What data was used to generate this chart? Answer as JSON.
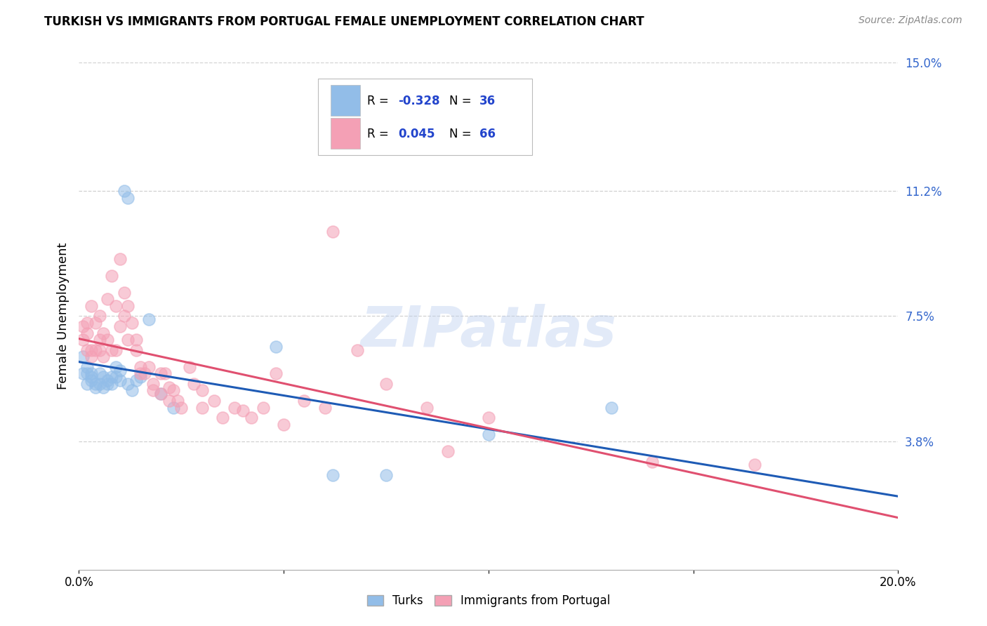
{
  "title": "TURKISH VS IMMIGRANTS FROM PORTUGAL FEMALE UNEMPLOYMENT CORRELATION CHART",
  "source": "Source: ZipAtlas.com",
  "ylabel": "Female Unemployment",
  "x_min": 0.0,
  "x_max": 0.2,
  "y_min": 0.0,
  "y_max": 0.15,
  "x_ticks": [
    0.0,
    0.05,
    0.1,
    0.15,
    0.2
  ],
  "x_tick_labels": [
    "0.0%",
    "",
    "",
    "",
    "20.0%"
  ],
  "y_tick_labels_right": [
    "15.0%",
    "11.2%",
    "7.5%",
    "3.8%"
  ],
  "y_tick_values_right": [
    0.15,
    0.112,
    0.075,
    0.038
  ],
  "legend_turks_R": "-0.328",
  "legend_turks_N": "36",
  "legend_portugal_R": "0.045",
  "legend_portugal_N": "66",
  "turks_color": "#92BDE8",
  "portugal_color": "#F4A0B5",
  "turks_line_color": "#1E5BB5",
  "portugal_line_color": "#E05070",
  "turks_scatter": [
    [
      0.001,
      0.063
    ],
    [
      0.001,
      0.058
    ],
    [
      0.002,
      0.06
    ],
    [
      0.002,
      0.058
    ],
    [
      0.002,
      0.055
    ],
    [
      0.003,
      0.058
    ],
    [
      0.003,
      0.056
    ],
    [
      0.003,
      0.057
    ],
    [
      0.004,
      0.055
    ],
    [
      0.004,
      0.054
    ],
    [
      0.005,
      0.058
    ],
    [
      0.005,
      0.055
    ],
    [
      0.006,
      0.057
    ],
    [
      0.006,
      0.054
    ],
    [
      0.007,
      0.056
    ],
    [
      0.007,
      0.055
    ],
    [
      0.008,
      0.057
    ],
    [
      0.008,
      0.055
    ],
    [
      0.009,
      0.06
    ],
    [
      0.009,
      0.057
    ],
    [
      0.01,
      0.059
    ],
    [
      0.01,
      0.056
    ],
    [
      0.011,
      0.112
    ],
    [
      0.012,
      0.11
    ],
    [
      0.012,
      0.055
    ],
    [
      0.013,
      0.053
    ],
    [
      0.014,
      0.056
    ],
    [
      0.015,
      0.057
    ],
    [
      0.017,
      0.074
    ],
    [
      0.02,
      0.052
    ],
    [
      0.023,
      0.048
    ],
    [
      0.048,
      0.066
    ],
    [
      0.062,
      0.028
    ],
    [
      0.075,
      0.028
    ],
    [
      0.1,
      0.04
    ],
    [
      0.13,
      0.048
    ]
  ],
  "portugal_scatter": [
    [
      0.001,
      0.072
    ],
    [
      0.001,
      0.068
    ],
    [
      0.002,
      0.07
    ],
    [
      0.002,
      0.073
    ],
    [
      0.002,
      0.065
    ],
    [
      0.003,
      0.078
    ],
    [
      0.003,
      0.065
    ],
    [
      0.003,
      0.063
    ],
    [
      0.004,
      0.073
    ],
    [
      0.004,
      0.065
    ],
    [
      0.005,
      0.068
    ],
    [
      0.005,
      0.075
    ],
    [
      0.005,
      0.065
    ],
    [
      0.006,
      0.07
    ],
    [
      0.006,
      0.063
    ],
    [
      0.007,
      0.08
    ],
    [
      0.007,
      0.068
    ],
    [
      0.008,
      0.087
    ],
    [
      0.008,
      0.065
    ],
    [
      0.009,
      0.078
    ],
    [
      0.009,
      0.065
    ],
    [
      0.01,
      0.092
    ],
    [
      0.01,
      0.072
    ],
    [
      0.011,
      0.082
    ],
    [
      0.011,
      0.075
    ],
    [
      0.012,
      0.078
    ],
    [
      0.012,
      0.068
    ],
    [
      0.013,
      0.073
    ],
    [
      0.014,
      0.068
    ],
    [
      0.014,
      0.065
    ],
    [
      0.015,
      0.06
    ],
    [
      0.015,
      0.058
    ],
    [
      0.016,
      0.058
    ],
    [
      0.017,
      0.06
    ],
    [
      0.018,
      0.055
    ],
    [
      0.018,
      0.053
    ],
    [
      0.02,
      0.058
    ],
    [
      0.02,
      0.052
    ],
    [
      0.021,
      0.058
    ],
    [
      0.022,
      0.054
    ],
    [
      0.022,
      0.05
    ],
    [
      0.023,
      0.053
    ],
    [
      0.024,
      0.05
    ],
    [
      0.025,
      0.048
    ],
    [
      0.027,
      0.06
    ],
    [
      0.028,
      0.055
    ],
    [
      0.03,
      0.053
    ],
    [
      0.03,
      0.048
    ],
    [
      0.033,
      0.05
    ],
    [
      0.035,
      0.045
    ],
    [
      0.038,
      0.048
    ],
    [
      0.04,
      0.047
    ],
    [
      0.042,
      0.045
    ],
    [
      0.045,
      0.048
    ],
    [
      0.048,
      0.058
    ],
    [
      0.05,
      0.043
    ],
    [
      0.055,
      0.05
    ],
    [
      0.06,
      0.048
    ],
    [
      0.062,
      0.1
    ],
    [
      0.068,
      0.065
    ],
    [
      0.075,
      0.055
    ],
    [
      0.085,
      0.048
    ],
    [
      0.09,
      0.035
    ],
    [
      0.1,
      0.045
    ],
    [
      0.14,
      0.032
    ],
    [
      0.165,
      0.031
    ]
  ],
  "watermark_text": "ZIPatlas",
  "background_color": "#FFFFFF",
  "grid_color": "#CCCCCC"
}
